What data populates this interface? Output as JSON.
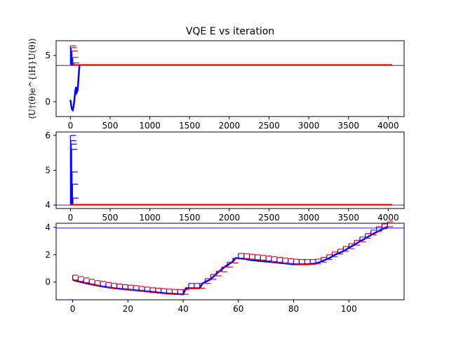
{
  "figure": {
    "title": "VQE E vs iteration",
    "ylabel": "⟨U†(θ)e^{iH}U(θ)⟩"
  },
  "colors": {
    "series": "#0000ff",
    "secondary": "#ff0000",
    "reference": "#0000ff"
  },
  "chart_data": [
    {
      "type": "line",
      "title": "VQE E vs iteration",
      "ylabel": "⟨U†(θ)e^{iH}U(θ)⟩",
      "xlim": [
        -180,
        4200
      ],
      "ylim": [
        -1.6,
        6.6
      ],
      "xticks": [
        0,
        500,
        1000,
        1500,
        2000,
        2500,
        3000,
        3500,
        4000
      ],
      "yticks": [
        0,
        5
      ],
      "reference_line": 3.93,
      "series": [
        {
          "kind": "line",
          "x": [
            0,
            10,
            20,
            30,
            40,
            50,
            60,
            70,
            80,
            90,
            100,
            110,
            115
          ],
          "y": [
            0.2,
            -0.4,
            -0.8,
            -0.9,
            -0.5,
            0.2,
            1.1,
            1.6,
            1.0,
            1.2,
            2.3,
            3.5,
            3.95
          ]
        },
        {
          "kind": "line",
          "x": [
            0,
            4050
          ],
          "y": [
            3.98,
            3.98
          ]
        },
        {
          "kind": "errorbar",
          "x": [
            0,
            10,
            20,
            30,
            40
          ],
          "low": [
            3.98,
            3.98,
            3.98,
            3.98,
            3.98
          ],
          "high": [
            6.05,
            5.85,
            5.5,
            4.8,
            4.2
          ]
        }
      ]
    },
    {
      "type": "line",
      "xlim": [
        -180,
        4200
      ],
      "ylim": [
        3.9,
        6.1
      ],
      "xticks": [
        0,
        500,
        1000,
        1500,
        2000,
        2500,
        3000,
        3500,
        4000
      ],
      "yticks": [
        4,
        5,
        6
      ],
      "reference_line": 4.0,
      "series": [
        {
          "kind": "errorbar",
          "x": [
            0,
            0,
            0,
            0,
            0,
            0,
            0
          ],
          "low": [
            4.0,
            4.0,
            4.0,
            4.0,
            4.0,
            4.0,
            4.0
          ],
          "high": [
            6.0,
            5.85,
            5.75,
            5.6,
            4.95,
            4.6,
            4.2
          ]
        },
        {
          "kind": "line",
          "x": [
            0,
            4050
          ],
          "y": [
            4.01,
            4.01
          ]
        }
      ]
    },
    {
      "type": "line",
      "xlim": [
        -6,
        120
      ],
      "ylim": [
        -1.3,
        4.3
      ],
      "xticks": [
        0,
        20,
        40,
        60,
        80,
        100
      ],
      "yticks": [
        0,
        2,
        4
      ],
      "reference_line": 3.95,
      "series": [
        {
          "kind": "line",
          "x": [
            0,
            5,
            10,
            15,
            20,
            25,
            30,
            35,
            40,
            41,
            46,
            47,
            50,
            52,
            55,
            58,
            59,
            62,
            65,
            70,
            75,
            80,
            85,
            88,
            90,
            93,
            95,
            98,
            100,
            103,
            106,
            109,
            112,
            114
          ],
          "y": [
            0.15,
            -0.1,
            -0.3,
            -0.45,
            -0.55,
            -0.65,
            -0.75,
            -0.85,
            -0.9,
            -0.45,
            -0.45,
            -0.1,
            0.2,
            0.6,
            1.1,
            1.5,
            1.75,
            1.7,
            1.6,
            1.5,
            1.4,
            1.3,
            1.3,
            1.35,
            1.5,
            1.75,
            2.0,
            2.25,
            2.5,
            2.85,
            3.2,
            3.55,
            3.85,
            4.05
          ]
        },
        {
          "kind": "errorbar",
          "x": [
            0,
            2,
            4,
            6,
            8,
            10,
            12,
            14,
            16,
            18,
            20,
            22,
            24,
            26,
            28,
            30,
            32,
            34,
            36,
            38,
            40,
            42,
            44,
            46,
            48,
            50,
            52,
            54,
            56,
            58,
            60,
            62,
            64,
            66,
            68,
            70,
            72,
            74,
            76,
            78,
            80,
            82,
            84,
            86,
            88,
            90,
            92,
            94,
            96,
            98,
            100,
            102,
            104,
            106,
            108,
            110,
            112,
            114
          ],
          "low": [
            0.15,
            0.05,
            -0.05,
            -0.15,
            -0.25,
            -0.3,
            -0.38,
            -0.45,
            -0.5,
            -0.55,
            -0.58,
            -0.62,
            -0.67,
            -0.72,
            -0.77,
            -0.8,
            -0.84,
            -0.87,
            -0.89,
            -0.9,
            -0.9,
            -0.45,
            -0.45,
            -0.45,
            -0.1,
            0.2,
            0.45,
            0.75,
            1.1,
            1.4,
            1.75,
            1.72,
            1.68,
            1.64,
            1.6,
            1.55,
            1.5,
            1.45,
            1.4,
            1.36,
            1.32,
            1.3,
            1.3,
            1.3,
            1.33,
            1.45,
            1.65,
            1.85,
            2.05,
            2.25,
            2.45,
            2.7,
            2.95,
            3.2,
            3.45,
            3.7,
            3.9,
            4.05
          ],
          "err": 0.35
        }
      ]
    }
  ]
}
